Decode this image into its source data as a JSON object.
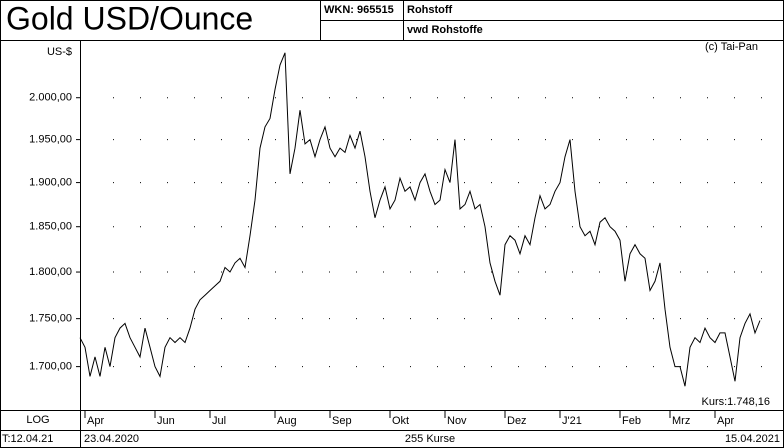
{
  "chart_data": {
    "type": "line",
    "title": "Gold USD/Ounce",
    "wkn": "WKN: 965515",
    "category": "Rohstoff",
    "source": "vwd Rohstoffe",
    "copyright": "(c) Tai-Pan",
    "y_label": "US-$",
    "last_price": "Kurs:1.748,16",
    "scale_label": "LOG",
    "footer": {
      "date": "T:12.04.21",
      "start": "23.04.2020",
      "count": "255 Kurse",
      "end": "15.04.2021"
    },
    "log": true,
    "grid": true,
    "color": "#000000",
    "ylim": [
      1656,
      2071
    ],
    "yticks": [
      {
        "value": 1700,
        "label": "1.700,00"
      },
      {
        "value": 1750,
        "label": "1.750,00"
      },
      {
        "value": 1800,
        "label": "1.800,00"
      },
      {
        "value": 1850,
        "label": "1.850,00"
      },
      {
        "value": 1900,
        "label": "1.900,00"
      },
      {
        "value": 1950,
        "label": "1.950,00"
      },
      {
        "value": 2000,
        "label": "2.000,00"
      }
    ],
    "xlim": [
      0,
      140
    ],
    "xticks": [
      {
        "value": 1,
        "label": "Apr"
      },
      {
        "value": 15,
        "label": "Jun"
      },
      {
        "value": 26,
        "label": "Jul"
      },
      {
        "value": 39,
        "label": "Aug"
      },
      {
        "value": 50,
        "label": "Sep"
      },
      {
        "value": 62,
        "label": "Okt"
      },
      {
        "value": 73,
        "label": "Nov"
      },
      {
        "value": 85,
        "label": "Dez"
      },
      {
        "value": 96,
        "label": "J'21"
      },
      {
        "value": 108,
        "label": "Feb"
      },
      {
        "value": 118,
        "label": "Mrz"
      },
      {
        "value": 127,
        "label": "Apr"
      }
    ],
    "values": [
      1730,
      1720,
      1690,
      1710,
      1690,
      1720,
      1700,
      1730,
      1740,
      1745,
      1730,
      1720,
      1710,
      1740,
      1720,
      1700,
      1690,
      1720,
      1730,
      1725,
      1730,
      1725,
      1740,
      1760,
      1770,
      1775,
      1780,
      1785,
      1790,
      1805,
      1800,
      1810,
      1815,
      1805,
      1840,
      1880,
      1940,
      1965,
      1975,
      2010,
      2040,
      2055,
      1910,
      1940,
      1985,
      1945,
      1950,
      1930,
      1950,
      1965,
      1940,
      1930,
      1940,
      1935,
      1955,
      1940,
      1960,
      1930,
      1890,
      1860,
      1880,
      1895,
      1870,
      1880,
      1905,
      1890,
      1895,
      1880,
      1900,
      1910,
      1890,
      1875,
      1880,
      1915,
      1900,
      1950,
      1870,
      1875,
      1890,
      1870,
      1875,
      1850,
      1810,
      1790,
      1775,
      1830,
      1840,
      1835,
      1820,
      1840,
      1830,
      1860,
      1885,
      1870,
      1875,
      1890,
      1900,
      1930,
      1950,
      1890,
      1850,
      1840,
      1845,
      1830,
      1855,
      1860,
      1850,
      1845,
      1835,
      1790,
      1820,
      1830,
      1820,
      1815,
      1780,
      1790,
      1810,
      1760,
      1720,
      1700,
      1700,
      1680,
      1720,
      1730,
      1725,
      1740,
      1730,
      1725,
      1735,
      1735,
      1710,
      1685,
      1730,
      1745,
      1755,
      1735,
      1748
    ]
  }
}
